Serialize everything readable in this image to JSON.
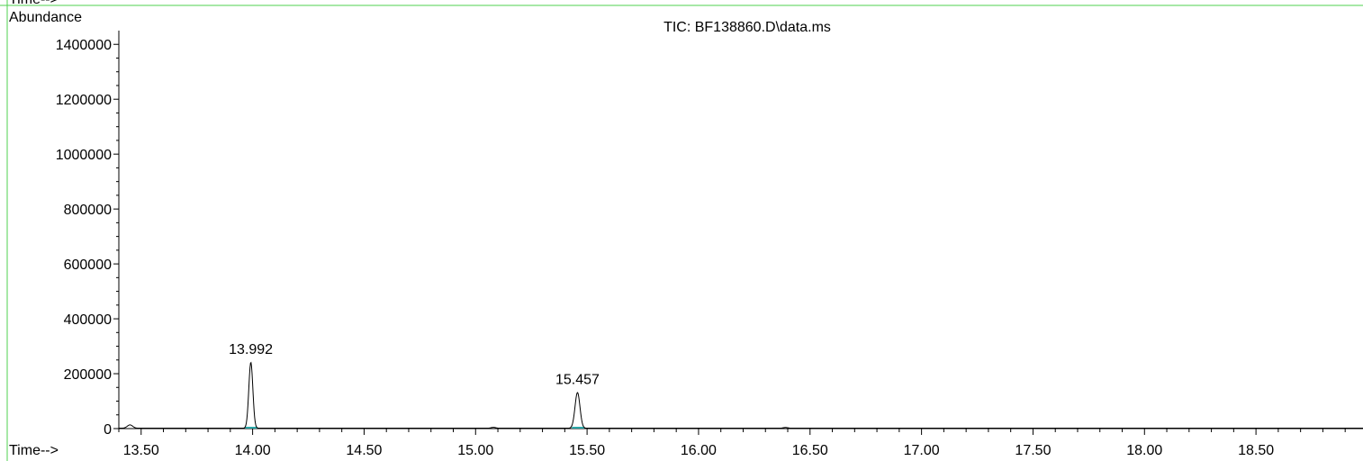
{
  "chart_data": {
    "type": "line",
    "title": "TIC: BF138860.D\\data.ms",
    "ylabel": "Abundance",
    "xlabel": "Time-->",
    "top_label_fragment": "Time-->",
    "xlim": [
      13.4,
      18.98
    ],
    "ylim": [
      0,
      1450000
    ],
    "x_ticks": [
      13.5,
      14.0,
      14.5,
      15.0,
      15.5,
      16.0,
      16.5,
      17.0,
      17.5,
      18.0,
      18.5
    ],
    "x_tick_labels": [
      "13.50",
      "14.00",
      "14.50",
      "15.00",
      "15.50",
      "16.00",
      "16.50",
      "17.00",
      "17.50",
      "18.00",
      "18.50"
    ],
    "y_ticks": [
      0,
      200000,
      400000,
      600000,
      800000,
      1000000,
      1200000,
      1400000
    ],
    "y_tick_labels": [
      "0",
      "200000",
      "400000",
      "600000",
      "800000",
      "1000000",
      "1200000",
      "1400000"
    ],
    "grid": false,
    "series": [
      {
        "color": "#000000",
        "peaks": [
          {
            "rt": 13.45,
            "height": 12000,
            "width": 0.012
          },
          {
            "rt": 13.992,
            "height": 240000,
            "width": 0.009
          },
          {
            "rt": 15.457,
            "height": 130000,
            "width": 0.011
          },
          {
            "rt": 15.08,
            "height": 3000,
            "width": 0.01
          },
          {
            "rt": 16.39,
            "height": 2500,
            "width": 0.01
          }
        ],
        "baseline": 1500
      }
    ],
    "annotations": [
      {
        "x": 13.992,
        "y": 240000,
        "text": "13.992"
      },
      {
        "x": 15.457,
        "y": 130000,
        "text": "15.457"
      }
    ],
    "integration_color": "#2aa7a7"
  }
}
